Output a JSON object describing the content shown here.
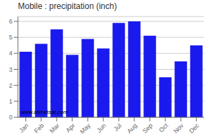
{
  "chart_data": {
    "type": "bar",
    "title": "Mobile : precipitation (inch)",
    "categories": [
      "Jan",
      "Feb",
      "Mar",
      "Apr",
      "May",
      "Jun",
      "Jul",
      "Aug",
      "Sep",
      "Oct",
      "Nov",
      "Dec"
    ],
    "values": [
      4.1,
      4.6,
      5.5,
      3.9,
      4.9,
      4.3,
      5.9,
      6.0,
      5.1,
      2.5,
      3.5,
      4.5
    ],
    "color": "#1a1aee",
    "ylim": [
      0,
      6.3
    ],
    "yticks": [
      0,
      1,
      2,
      3,
      4,
      5,
      6
    ],
    "grid": true,
    "annotations": [
      "www.allmetsat.com"
    ]
  }
}
